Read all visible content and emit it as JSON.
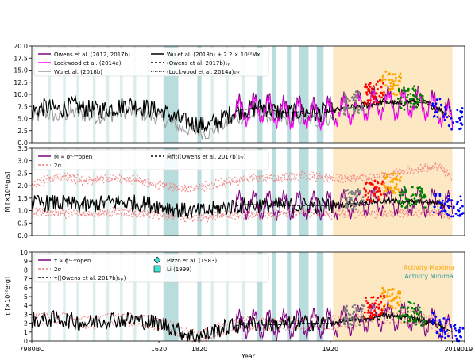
{
  "chart_data": [
    {
      "type": "line",
      "panel": "top",
      "xlim": [
        1700,
        2019
      ],
      "ylim": [
        0,
        20
      ],
      "yticks": [
        "0.0",
        "2.5",
        "5.0",
        "7.5",
        "10.0",
        "12.5",
        "15.0",
        "17.5",
        "20.0"
      ],
      "ylabel": "",
      "legend_left": [
        {
          "name": "Owens et al. (2012, 2017b)",
          "color": "#800080",
          "style": "solid"
        },
        {
          "name": "Lockwood et al. (2014a)",
          "color": "#ff00ff",
          "style": "solid"
        },
        {
          "name": "Wu et al. (2018b)",
          "color": "#999999",
          "style": "solid"
        }
      ],
      "legend_right": [
        {
          "name": "Wu et al. (2018b) + 2.2 × 10²²Mx",
          "color": "#000000",
          "style": "solid"
        },
        {
          "name": "(Owens et al. 2017b)₁ᵧᵣ",
          "color": "#000000",
          "style": "dashed"
        },
        {
          "name": "(Lockwood et al. 2014a)₁ᵧᵣ",
          "color": "#000000",
          "style": "dotted"
        }
      ],
      "series": [
        {
          "name": "black",
          "x": [
            1700,
            1710,
            1720,
            1730,
            1740,
            1750,
            1760,
            1770,
            1780,
            1790,
            1800,
            1810,
            1820,
            1830,
            1840,
            1850,
            1860,
            1870,
            1880,
            1890,
            1900,
            1910,
            1920,
            1930,
            1940,
            1950,
            1960,
            1970,
            1980,
            1990,
            2000,
            2010
          ],
          "values": [
            6.5,
            7.5,
            6.8,
            7.8,
            7.0,
            6.8,
            7.2,
            8.0,
            7.5,
            6.8,
            6.0,
            4.5,
            4.0,
            3.5,
            5.0,
            6.5,
            7.0,
            7.5,
            6.5,
            6.2,
            6.5,
            6.0,
            6.5,
            7.0,
            7.5,
            8.0,
            8.5,
            8.0,
            8.5,
            8.2,
            7.0,
            5.0
          ]
        },
        {
          "name": "purple",
          "x": [
            1810,
            1820,
            1830,
            1840,
            1850,
            1860,
            1870,
            1880,
            1890,
            1900,
            1910,
            1920,
            1930,
            1940,
            1950,
            1960,
            1970,
            1980,
            1990,
            2000,
            2010
          ],
          "values": [
            3.5,
            3.0,
            3.5,
            5.5,
            7.0,
            8.0,
            8.5,
            7.0,
            7.0,
            7.0,
            6.5,
            7.0,
            7.5,
            8.0,
            9.0,
            10.0,
            9.0,
            9.5,
            9.0,
            7.0,
            5.0
          ]
        }
      ],
      "shading": {
        "maxima": [
          [
            1922,
            2010
          ]
        ],
        "minima": [
          [
            1712,
            1714
          ],
          [
            1723,
            1725
          ],
          [
            1733,
            1735
          ],
          [
            1745,
            1747
          ],
          [
            1755,
            1757
          ],
          [
            1765,
            1767
          ],
          [
            1775,
            1777
          ],
          [
            1785,
            1787
          ],
          [
            1797,
            1808
          ],
          [
            1822,
            1825
          ],
          [
            1832,
            1834
          ],
          [
            1843,
            1845
          ],
          [
            1855,
            1857
          ],
          [
            1866,
            1870
          ],
          [
            1877,
            1880
          ],
          [
            1888,
            1891
          ],
          [
            1897,
            1904
          ],
          [
            1910,
            1915
          ]
        ]
      }
    },
    {
      "type": "line",
      "panel": "middle",
      "xlim": [
        1700,
        2019
      ],
      "ylim": [
        0,
        3.5
      ],
      "yticks": [
        "0.0",
        "0.5",
        "1.0",
        "1.5",
        "2.0",
        "2.5",
        "3.0",
        "3.5"
      ],
      "ylabel": "Ṁ [×10¹²g/s]",
      "legend_left": [
        {
          "name": "Ṁ ∝ ϕ⁰·⁴⁴open",
          "color": "#800080",
          "style": "solid"
        },
        {
          "name": "2σ",
          "color": "#f08080",
          "style": "dashed"
        }
      ],
      "legend_right": [
        {
          "name": "Ṁfit((Owens et al. 2017b)₁ᵧᵣ)",
          "color": "#000000",
          "style": "dashed"
        }
      ],
      "series": [
        {
          "name": "black",
          "x": [
            1700,
            1720,
            1740,
            1760,
            1780,
            1800,
            1810,
            1820,
            1830,
            1840,
            1860,
            1880,
            1900,
            1920,
            1940,
            1960,
            1980,
            2000,
            2010
          ],
          "values": [
            1.3,
            1.3,
            1.2,
            1.35,
            1.3,
            1.15,
            1.0,
            0.95,
            1.0,
            1.1,
            1.25,
            1.2,
            1.2,
            1.2,
            1.3,
            1.4,
            1.35,
            1.3,
            1.15
          ]
        },
        {
          "name": "upper-2sigma",
          "x": [
            1700,
            1720,
            1740,
            1760,
            1780,
            1800,
            1820,
            1840,
            1860,
            1880,
            1900,
            1920,
            1940,
            1960,
            1980,
            2000,
            2010
          ],
          "values": [
            2.0,
            2.4,
            2.2,
            2.3,
            2.2,
            2.0,
            1.9,
            2.1,
            2.3,
            2.3,
            2.4,
            2.3,
            2.3,
            2.4,
            2.6,
            2.8,
            2.3
          ]
        },
        {
          "name": "lower-2sigma",
          "x": [
            1700,
            1720,
            1740,
            1760,
            1780,
            1800,
            1820,
            1840,
            1860,
            1880,
            1900,
            1920,
            1940,
            1960,
            1980,
            2000,
            2010
          ],
          "values": [
            0.95,
            0.9,
            0.85,
            0.95,
            0.9,
            0.8,
            0.7,
            0.8,
            0.85,
            0.85,
            0.9,
            0.85,
            0.9,
            0.9,
            0.9,
            0.9,
            0.8
          ]
        }
      ]
    },
    {
      "type": "line",
      "panel": "bottom",
      "xlim": [
        1700,
        2019
      ],
      "ylim": [
        0,
        10
      ],
      "yticks": [
        "0",
        "1",
        "2",
        "3",
        "4",
        "5",
        "6",
        "7",
        "8",
        "9",
        "10"
      ],
      "ylabel": "τ [×10³⁰erg]",
      "xlabel": "Year",
      "xticks": [
        "7980BC",
        "1620",
        "1820",
        "1920",
        "2010",
        "2019"
      ],
      "legend_left": [
        {
          "name": "τ ∝ ϕ¹·⁵⁹open",
          "color": "#800080",
          "style": "solid"
        },
        {
          "name": "2σ",
          "color": "#f08080",
          "style": "dashed"
        },
        {
          "name": "τ((Owens et al. 2017b)₁ᵧᵣ)",
          "color": "#000000",
          "style": "dashed"
        }
      ],
      "legend_right": [
        {
          "name": "Pizzo et al. (1983)",
          "color": "#40e0d0",
          "marker": "diamond"
        },
        {
          "name": "Li (1999)",
          "color": "#40e0d0",
          "marker": "square"
        }
      ],
      "annotations": [
        {
          "text": "Activity Maxima",
          "color": "#ffa500"
        },
        {
          "text": "Activity Minima",
          "color": "#2f9e9e"
        }
      ],
      "series": [
        {
          "name": "black",
          "x": [
            1700,
            1720,
            1740,
            1760,
            1780,
            1800,
            1810,
            1820,
            1830,
            1840,
            1860,
            1880,
            1900,
            1920,
            1940,
            1960,
            1980,
            2000,
            2010
          ],
          "values": [
            2.3,
            2.5,
            2.0,
            2.5,
            2.3,
            1.8,
            1.0,
            0.5,
            0.8,
            1.4,
            2.0,
            1.8,
            2.0,
            2.0,
            2.4,
            2.8,
            2.7,
            1.8,
            1.0
          ]
        }
      ]
    }
  ]
}
